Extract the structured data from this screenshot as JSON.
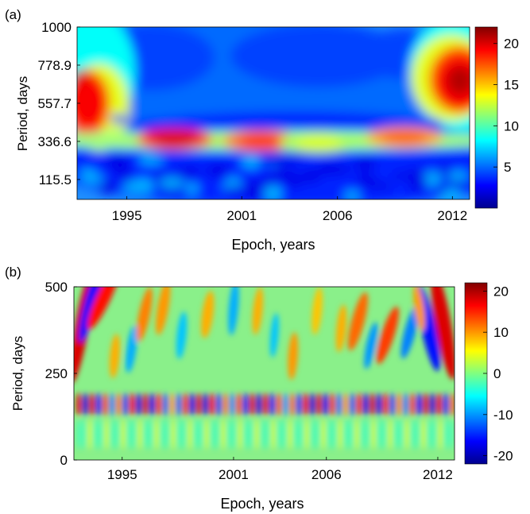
{
  "chart_data": [
    {
      "panel": "(a)",
      "type": "heatmap",
      "title": "",
      "xlabel": "Epoch, years",
      "ylabel": "Period, days",
      "xlim": [
        1992.4,
        2012.9
      ],
      "ylim": [
        0,
        1000
      ],
      "x_ticks": [
        1995,
        2001,
        2006,
        2012
      ],
      "y_ticks": [
        115.5,
        336.6,
        557.7,
        778.9,
        1000
      ],
      "y_tick_labels": [
        "115.5",
        "336.6",
        "557.7",
        "778.9",
        "1000"
      ],
      "colorbar": {
        "ticks": [
          5,
          10,
          15,
          20
        ],
        "range": [
          0,
          22
        ],
        "colormap": "jet"
      },
      "features": [
        {
          "x": 1993.0,
          "y": 560,
          "value": 20
        },
        {
          "x": 2012.4,
          "y": 680,
          "value": 20
        },
        {
          "x": 1997.5,
          "y": 350,
          "value": 20
        },
        {
          "x": 2002.0,
          "y": 340,
          "value": 18
        },
        {
          "x": 2009.5,
          "y": 360,
          "value": 17
        },
        {
          "x": 2005.0,
          "y": 330,
          "value": 13
        }
      ]
    },
    {
      "panel": "(b)",
      "type": "heatmap",
      "title": "",
      "xlabel": "Epoch, years",
      "ylabel": "Period, days",
      "xlim": [
        1992.4,
        2012.9
      ],
      "ylim": [
        0,
        500
      ],
      "x_ticks": [
        1995,
        2001,
        2006,
        2012
      ],
      "y_ticks": [
        0,
        250,
        500
      ],
      "colorbar": {
        "ticks": [
          20,
          10,
          0,
          -10,
          -20
        ],
        "range": [
          -22,
          22
        ],
        "colormap": "jet"
      }
    }
  ]
}
